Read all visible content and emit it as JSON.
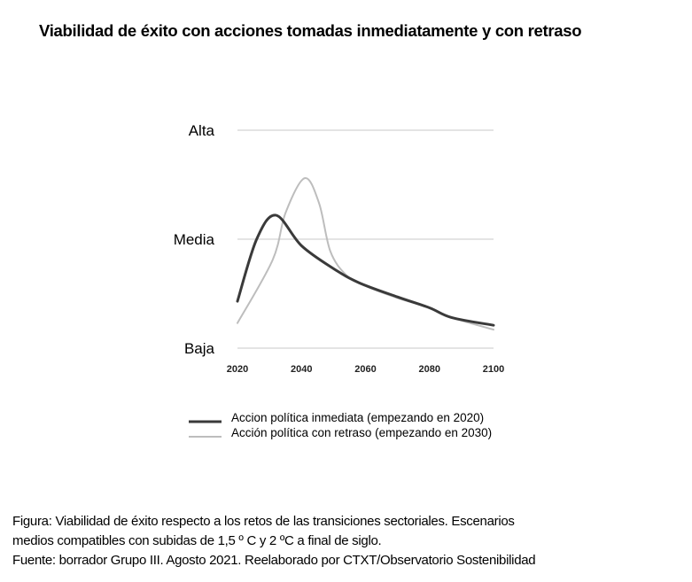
{
  "chart_data": {
    "type": "line",
    "title": "Viabilidad de éxito con acciones tomadas inmediatamente y con retraso",
    "xlabel": "",
    "ylabel": "",
    "xlim": [
      2020,
      2100
    ],
    "ylim": [
      0,
      2
    ],
    "x_ticks": [
      "2020",
      "2040",
      "2060",
      "2080",
      "2100"
    ],
    "x_tick_values": [
      2020,
      2040,
      2060,
      2080,
      2100
    ],
    "y_ticks": [
      {
        "label": "Baja",
        "value": 0
      },
      {
        "label": "Media",
        "value": 1
      },
      {
        "label": "Alta",
        "value": 2
      }
    ],
    "grid": true,
    "legend_position": "bottom",
    "series": [
      {
        "name": "Accion política inmediata (empezando en 2020)",
        "color": "#3a3a3a",
        "x": [
          2020,
          2026,
          2032,
          2040,
          2050,
          2058,
          2070,
          2080,
          2087,
          2100
        ],
        "y": [
          0.43,
          1.0,
          1.22,
          0.94,
          0.73,
          0.6,
          0.47,
          0.37,
          0.28,
          0.21
        ]
      },
      {
        "name": "Acción política con retraso (empezando en 2030)",
        "color": "#bdbdbd",
        "x": [
          2020,
          2031,
          2035,
          2041,
          2045.5,
          2049,
          2054,
          2060,
          2070,
          2080,
          2087,
          2100
        ],
        "y": [
          0.23,
          0.81,
          1.24,
          1.56,
          1.33,
          0.89,
          0.67,
          0.57,
          0.46,
          0.37,
          0.28,
          0.17
        ]
      }
    ]
  },
  "caption": {
    "lines": [
      "Figura: Viabilidad de éxito respecto a los retos de las transiciones sectoriales. Escenarios",
      "medios compatibles con subidas de 1,5 º C y 2 ºC a final de siglo.",
      "Fuente: borrador Grupo III. Agosto 2021. Reelaborado por CTXT/Observatorio Sostenibilidad"
    ]
  }
}
